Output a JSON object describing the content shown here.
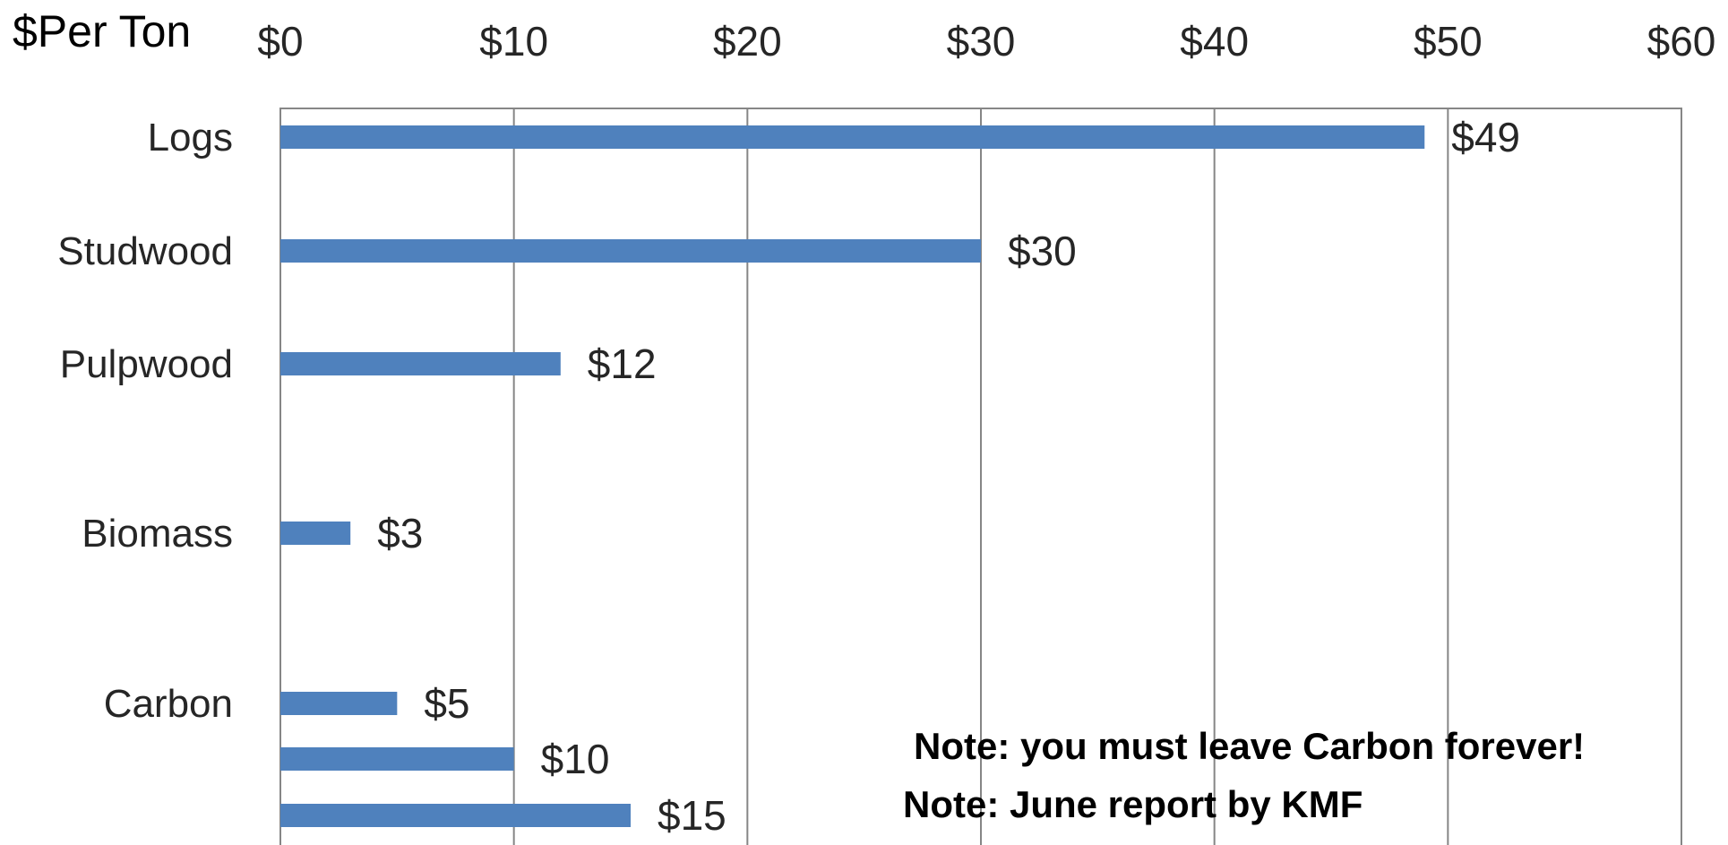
{
  "chart_data": {
    "type": "bar",
    "orientation": "horizontal",
    "title": "$Per Ton",
    "xlim": [
      0,
      60
    ],
    "x_ticks": [
      "$0",
      "$10",
      "$20",
      "$30",
      "$40",
      "$50",
      "$60"
    ],
    "x_tick_values": [
      0,
      10,
      20,
      30,
      40,
      50,
      60
    ],
    "grid": "vertical",
    "x_axis_position": "top",
    "bar_color": "#4F81BD",
    "bars": [
      {
        "category": "Logs",
        "value": 49,
        "label": "$49"
      },
      {
        "category": "Studwood",
        "value": 30,
        "label": "$30"
      },
      {
        "category": "Pulpwood",
        "value": 12,
        "label": "$12"
      },
      {
        "category": "Biomass",
        "value": 3,
        "label": "$3"
      },
      {
        "category": "Carbon",
        "value": 5,
        "label": "$5"
      },
      {
        "category": "",
        "value": 10,
        "label": "$10"
      },
      {
        "category": "",
        "value": 15,
        "label": "$15"
      }
    ],
    "annotations": [
      "Note: you must leave Carbon forever!",
      "Note: June report by KMF"
    ]
  }
}
